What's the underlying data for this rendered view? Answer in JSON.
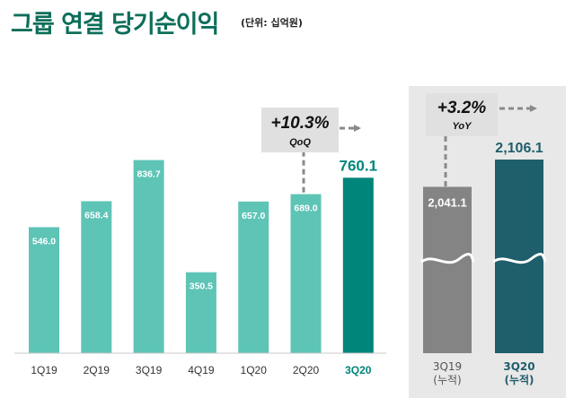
{
  "title": "그룹 연결 당기순이익",
  "unit": "(단위: 십억원)",
  "chart_data": [
    {
      "type": "bar",
      "title": "그룹 연결 당기순이익",
      "categories": [
        "1Q19",
        "2Q19",
        "3Q19",
        "4Q19",
        "1Q20",
        "2Q20",
        "3Q20"
      ],
      "values": [
        546.0,
        658.4,
        836.7,
        350.5,
        657.0,
        689.0,
        760.1
      ],
      "value_labels": [
        "546.0",
        "658.4",
        "836.7",
        "350.5",
        "657.0",
        "689.0",
        "760.1"
      ],
      "ylim": [
        0,
        1000
      ],
      "highlight_index": 6,
      "annotation": {
        "value": "+10.3%",
        "label": "QoQ"
      }
    },
    {
      "type": "bar",
      "categories": [
        "3Q19\n(누적)",
        "3Q20\n(누적)"
      ],
      "category_lines": [
        [
          "3Q19",
          "(누적)"
        ],
        [
          "3Q20",
          "(누적)"
        ]
      ],
      "values": [
        2041.1,
        2106.1
      ],
      "value_labels": [
        "2,041.1",
        "2,106.1"
      ],
      "axis_break": true,
      "annotation": {
        "value": "+3.2%",
        "label": "YoY"
      }
    }
  ],
  "colors": {
    "title": "#0d6e5a",
    "bar": "#5ec4b6",
    "bar_highlight": "#00857a",
    "bar_prev_cum": "#848484",
    "bar_cur_cum": "#1f5e6b",
    "panel_bg": "#e8e8e8",
    "callout_bg": "#e0e0e0"
  }
}
